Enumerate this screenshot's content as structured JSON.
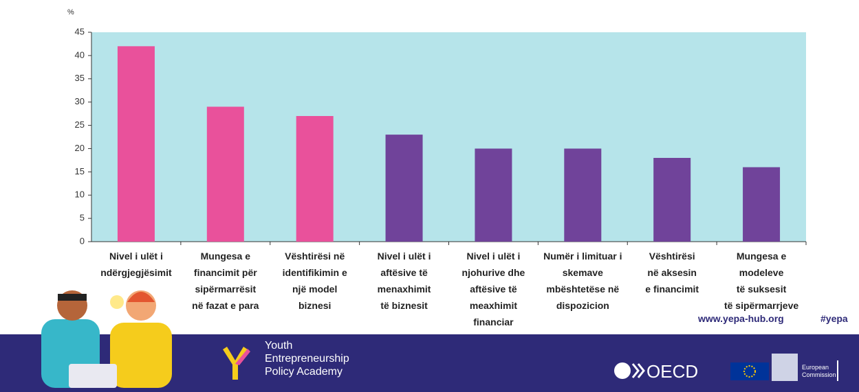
{
  "chart_data": {
    "type": "bar",
    "y_label": "%",
    "categories": [
      "Nivel i ulët i\nndërgjegjësimit",
      "Mungesa e\nfinancimit për\nsipërmarrësit\nnë fazat e para",
      "Vështirësi në\nidentifikimin e\nnjë model\nbiznesi",
      "Nivel i ulët i\naftësive të\nmenaxhimit\ntë biznesit",
      "Nivel i ulët i\nnjohurive dhe\naftësive të\nmeaxhimit\nfinanciar",
      "Numër i limituar i\nskemave\nmbështetëse në\ndispozicion",
      "Vështirësi\nnë aksesin\ne financimit",
      "Mungesa e\nmodeleve\ntë suksesit\ntë sipërmarrjeve"
    ],
    "values": [
      42,
      29,
      27,
      23,
      20,
      20,
      18,
      16
    ],
    "colors": [
      "#e9519b",
      "#e9519b",
      "#e9519b",
      "#70439a",
      "#70439a",
      "#70439a",
      "#70439a",
      "#70439a"
    ],
    "ylim": [
      0,
      45
    ],
    "yticks": [
      0,
      5,
      10,
      15,
      20,
      25,
      30,
      35,
      40,
      45
    ],
    "plot_background": "#b6e4ea"
  },
  "footer": {
    "website": "www.yepa-hub.org",
    "hashtag": "#yepa",
    "academy": "Youth\nEntrepreneurship\nPolicy Academy",
    "oecd": "OECD",
    "commission": "European\nCommission"
  }
}
